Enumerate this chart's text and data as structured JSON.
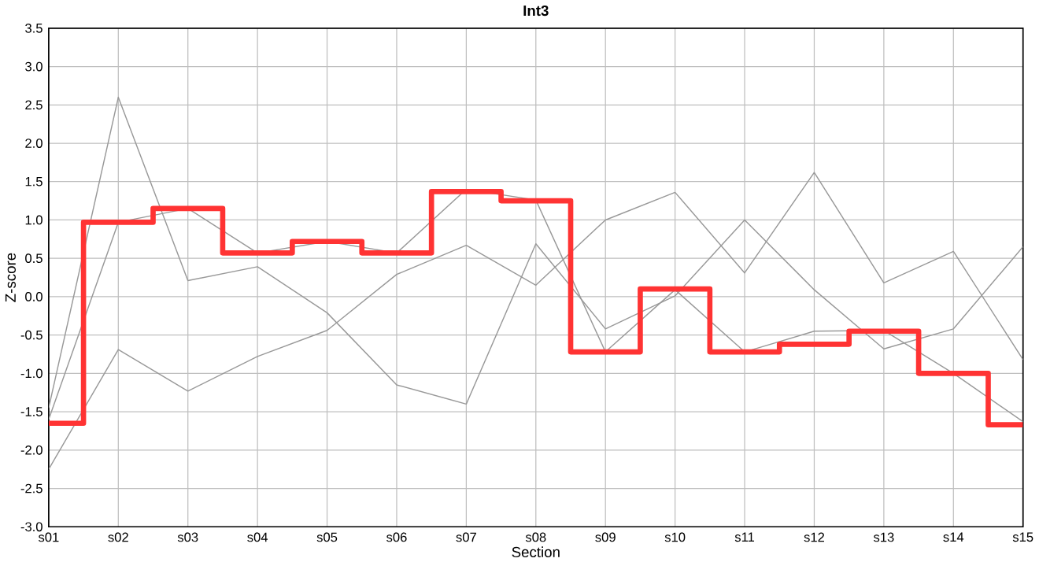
{
  "chart_data": {
    "type": "line",
    "title": "Int3",
    "xlabel": "Section",
    "ylabel": "Z-score",
    "categories": [
      "s01",
      "s02",
      "s03",
      "s04",
      "s05",
      "s06",
      "s07",
      "s08",
      "s09",
      "s10",
      "s11",
      "s12",
      "s13",
      "s14",
      "s15"
    ],
    "series": [
      {
        "color": "#999999",
        "values": [
          -1.45,
          2.6,
          0.21,
          0.39,
          -0.21,
          -1.15,
          -1.4,
          0.69,
          -0.42,
          0.01,
          1.0,
          0.09,
          -0.68,
          -0.42,
          0.65
        ]
      },
      {
        "color": "#999999",
        "values": [
          -2.25,
          -0.69,
          -1.23,
          -0.78,
          -0.44,
          0.29,
          0.67,
          0.15,
          1.0,
          1.36,
          0.31,
          1.62,
          0.18,
          0.59,
          -0.82
        ]
      },
      {
        "color": "#999999",
        "values": [
          -1.6,
          0.97,
          1.15,
          0.57,
          0.72,
          0.57,
          1.4,
          1.26,
          -0.72,
          0.09,
          -0.72,
          -0.45,
          -0.44,
          -1.0,
          -1.63
        ]
      },
      {
        "type": "step",
        "color": "#ff3333",
        "values": [
          -1.65,
          0.97,
          1.15,
          0.57,
          0.72,
          0.57,
          1.37,
          1.25,
          -0.72,
          0.1,
          -0.72,
          -0.62,
          -0.45,
          -1.0,
          -1.67
        ]
      }
    ],
    "ylim": [
      -3.0,
      3.5
    ],
    "yticks": [
      {
        "value": -3.0,
        "label": "-3.0"
      },
      {
        "value": -2.5,
        "label": "-2.5"
      },
      {
        "value": -2.0,
        "label": "-2.0"
      },
      {
        "value": -1.5,
        "label": "-1.5"
      },
      {
        "value": -1.0,
        "label": "-1.0"
      },
      {
        "value": -0.5,
        "label": "-0.5"
      },
      {
        "value": 0,
        "label": "0.0"
      },
      {
        "value": 0.5,
        "label": "0.5"
      },
      {
        "value": 1.0,
        "label": "1.0"
      },
      {
        "value": 1.5,
        "label": "1.5"
      },
      {
        "value": 2.0,
        "label": "2.0"
      },
      {
        "value": 2.5,
        "label": "2.5"
      },
      {
        "value": 3.0,
        "label": "3.0"
      },
      {
        "value": 3.5,
        "label": "3.5"
      }
    ],
    "grid": true,
    "marker": "none",
    "line_style": "solid"
  }
}
